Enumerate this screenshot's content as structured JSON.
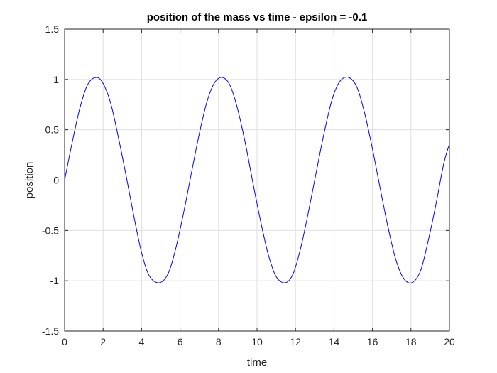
{
  "chart_data": {
    "type": "line",
    "title": "position of the mass vs time - epsilon = -0.1",
    "xlabel": "time",
    "ylabel": "position",
    "xlim": [
      0,
      20
    ],
    "ylim": [
      -1.5,
      1.5
    ],
    "xticks": [
      0,
      2,
      4,
      6,
      8,
      10,
      12,
      14,
      16,
      18,
      20
    ],
    "yticks": [
      -1.5,
      -1,
      -0.5,
      0,
      0.5,
      1,
      1.5
    ],
    "xtick_labels": [
      "0",
      "2",
      "4",
      "6",
      "8",
      "10",
      "12",
      "14",
      "16",
      "18",
      "20"
    ],
    "ytick_labels": [
      "-1.5",
      "-1",
      "-0.5",
      "0",
      "0.5",
      "1",
      "1.5"
    ],
    "grid": true,
    "legend": "none",
    "series": [
      {
        "color": "#0000ff",
        "x": [
          0,
          0.4,
          0.8,
          1.2,
          1.64,
          2.0,
          2.4,
          2.8,
          3.2,
          3.6,
          4.0,
          4.4,
          4.92,
          5.4,
          5.8,
          6.2,
          6.6,
          7.0,
          7.4,
          7.8,
          8.2,
          8.6,
          9.0,
          9.4,
          9.8,
          10.2,
          10.6,
          11.0,
          11.48,
          11.9,
          12.3,
          12.7,
          13.1,
          13.5,
          13.9,
          14.3,
          14.76,
          15.2,
          15.6,
          16.0,
          16.4,
          16.8,
          17.2,
          17.6,
          18.04,
          18.5,
          18.9,
          19.3,
          19.7,
          20.0
        ],
        "y": [
          0.0,
          0.38,
          0.72,
          0.95,
          1.02,
          0.96,
          0.76,
          0.42,
          0.04,
          -0.36,
          -0.72,
          -0.95,
          -1.02,
          -0.92,
          -0.66,
          -0.31,
          0.08,
          0.46,
          0.78,
          0.97,
          1.02,
          0.94,
          0.7,
          0.36,
          -0.04,
          -0.42,
          -0.75,
          -0.96,
          -1.02,
          -0.92,
          -0.65,
          -0.29,
          0.1,
          0.48,
          0.8,
          0.98,
          1.02,
          0.92,
          0.66,
          0.31,
          -0.08,
          -0.46,
          -0.78,
          -0.97,
          -1.02,
          -0.9,
          -0.6,
          -0.24,
          0.16,
          0.36
        ]
      }
    ]
  },
  "colors": {
    "line": "#0000ff",
    "axes": "#262626",
    "grid": "#dfdfdf",
    "background": "#ffffff"
  }
}
